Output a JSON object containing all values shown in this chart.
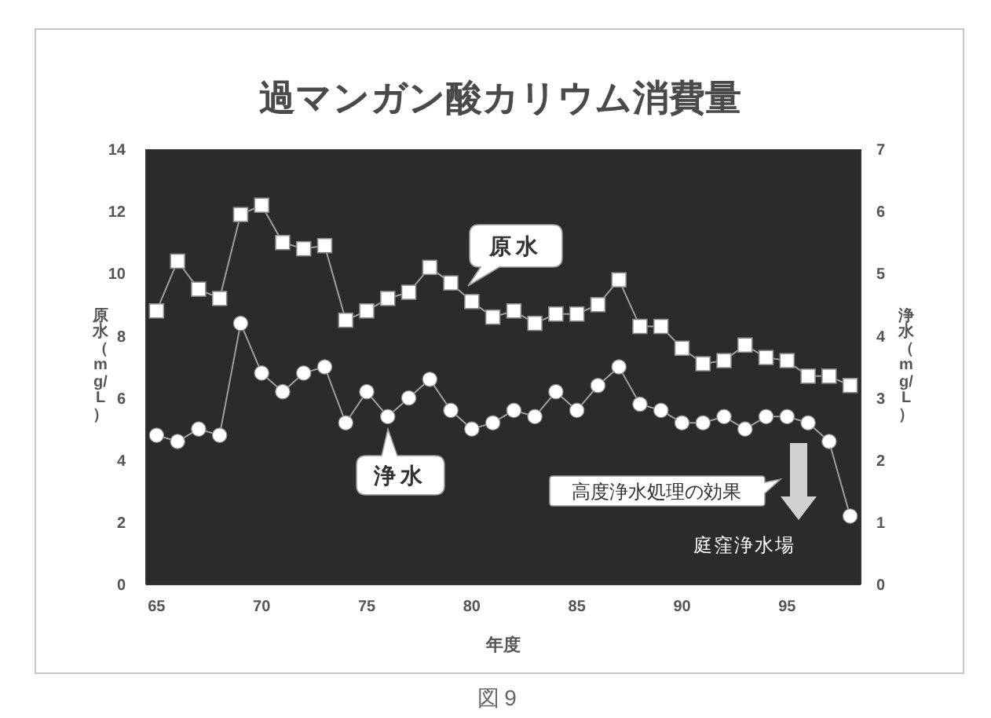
{
  "chart_data": {
    "type": "line",
    "title": "過マンガン酸カリウム消費量",
    "xlabel": "年度",
    "ylabel": "原水（mg/L）",
    "y2label": "浄水（mg/L）",
    "x": [
      65,
      66,
      67,
      68,
      69,
      70,
      71,
      72,
      73,
      74,
      75,
      76,
      77,
      78,
      79,
      80,
      81,
      82,
      83,
      84,
      85,
      86,
      87,
      88,
      89,
      90,
      91,
      92,
      93,
      94,
      95,
      96,
      97,
      98
    ],
    "series": [
      {
        "name": "原水",
        "color": "#ffffff",
        "marker": "square",
        "values": [
          8.8,
          10.4,
          9.5,
          9.2,
          11.9,
          12.2,
          11.0,
          10.8,
          10.9,
          8.5,
          8.8,
          9.2,
          9.4,
          10.2,
          9.7,
          9.1,
          8.6,
          8.8,
          8.4,
          8.7,
          8.7,
          9.0,
          9.8,
          8.3,
          8.3,
          7.6,
          7.1,
          7.2,
          7.7,
          7.3,
          7.2,
          6.7,
          6.7,
          6.4
        ]
      },
      {
        "name": "浄水",
        "color": "#ffffff",
        "marker": "circle",
        "axis": "y2",
        "values": [
          2.4,
          2.3,
          2.5,
          2.4,
          4.2,
          3.4,
          3.1,
          3.4,
          3.5,
          2.6,
          3.1,
          2.7,
          3.0,
          3.3,
          2.8,
          2.5,
          2.6,
          2.8,
          2.7,
          3.1,
          2.8,
          3.2,
          3.5,
          2.9,
          2.8,
          2.6,
          2.6,
          2.7,
          2.5,
          2.7,
          2.7,
          2.6,
          2.3,
          1.1
        ]
      }
    ],
    "xlim": [
      64.5,
      98.5
    ],
    "xticks": [
      65,
      70,
      75,
      80,
      85,
      90,
      95
    ],
    "ylim": [
      0,
      14
    ],
    "yticks": [
      0,
      2,
      4,
      6,
      8,
      10,
      12,
      14
    ],
    "y2lim": [
      0,
      7
    ],
    "y2ticks": [
      0,
      1,
      2,
      3,
      4,
      5,
      6,
      7
    ],
    "annotations": [
      "高度浄水処理の効果",
      "庭窪浄水場",
      "図9"
    ]
  }
}
